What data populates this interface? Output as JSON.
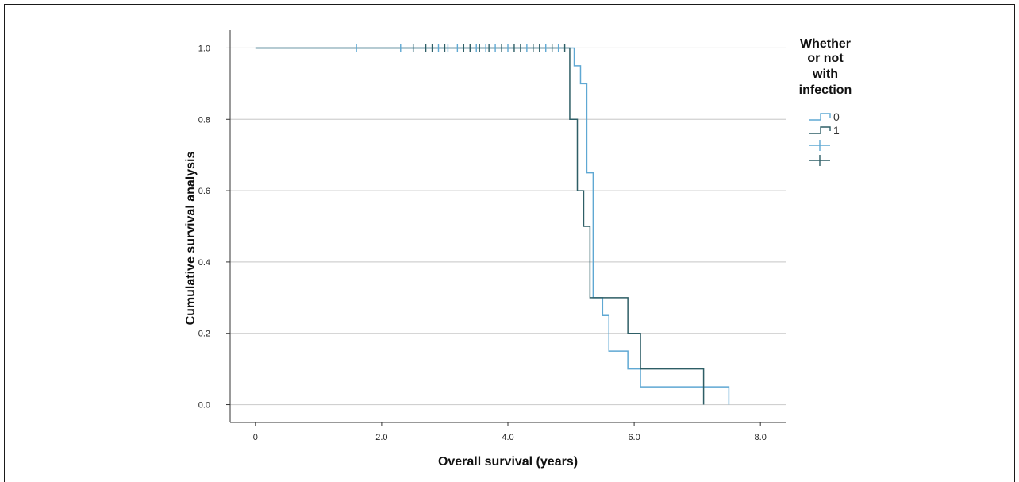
{
  "chart_data": {
    "type": "line",
    "subtype": "kaplan-meier",
    "title": "",
    "xlabel": "Overall survival (years)",
    "ylabel": "Cumulative survival analysis",
    "xlim": [
      -0.4,
      8.4
    ],
    "ylim": [
      -0.05,
      1.05
    ],
    "x_ticks": [
      "0",
      "2.0",
      "4.0",
      "6.0",
      "8.0"
    ],
    "x_tick_values": [
      0,
      2,
      4,
      6,
      8
    ],
    "y_ticks": [
      "0.0",
      "0.2",
      "0.4",
      "0.6",
      "0.8",
      "1.0"
    ],
    "y_tick_values": [
      0,
      0.2,
      0.4,
      0.6,
      0.8,
      1.0
    ],
    "grid": "horizontal",
    "legend": {
      "title_lines": [
        "Whether",
        "or not",
        "with",
        "infection"
      ],
      "placement": "right",
      "entries": [
        "0",
        "1",
        "",
        ""
      ]
    },
    "series": [
      {
        "name": "0",
        "color": "#5fa8d3",
        "steps": [
          [
            0,
            1.0
          ],
          [
            5.05,
            0.95
          ],
          [
            5.15,
            0.9
          ],
          [
            5.25,
            0.65
          ],
          [
            5.35,
            0.3
          ],
          [
            5.5,
            0.25
          ],
          [
            5.6,
            0.15
          ],
          [
            5.9,
            0.1
          ],
          [
            6.1,
            0.05
          ],
          [
            7.5,
            0.0
          ]
        ],
        "censored": [
          [
            1.6,
            1.0
          ],
          [
            2.3,
            1.0
          ],
          [
            2.5,
            1.0
          ],
          [
            2.9,
            1.0
          ],
          [
            3.05,
            1.0
          ],
          [
            3.2,
            1.0
          ],
          [
            3.5,
            1.0
          ],
          [
            3.65,
            1.0
          ],
          [
            3.8,
            1.0
          ],
          [
            4.0,
            1.0
          ],
          [
            4.3,
            1.0
          ],
          [
            4.6,
            1.0
          ],
          [
            4.8,
            1.0
          ]
        ]
      },
      {
        "name": "1",
        "color": "#2e5e66",
        "steps": [
          [
            0,
            1.0
          ],
          [
            4.98,
            0.8
          ],
          [
            5.1,
            0.6
          ],
          [
            5.2,
            0.5
          ],
          [
            5.3,
            0.3
          ],
          [
            5.9,
            0.2
          ],
          [
            6.1,
            0.1
          ],
          [
            7.1,
            0.0
          ]
        ],
        "censored": [
          [
            2.5,
            1.0
          ],
          [
            2.7,
            1.0
          ],
          [
            2.8,
            1.0
          ],
          [
            3.0,
            1.0
          ],
          [
            3.3,
            1.0
          ],
          [
            3.4,
            1.0
          ],
          [
            3.55,
            1.0
          ],
          [
            3.7,
            1.0
          ],
          [
            3.9,
            1.0
          ],
          [
            4.1,
            1.0
          ],
          [
            4.2,
            1.0
          ],
          [
            4.4,
            1.0
          ],
          [
            4.5,
            1.0
          ],
          [
            4.7,
            1.0
          ],
          [
            4.9,
            1.0
          ]
        ]
      }
    ]
  }
}
